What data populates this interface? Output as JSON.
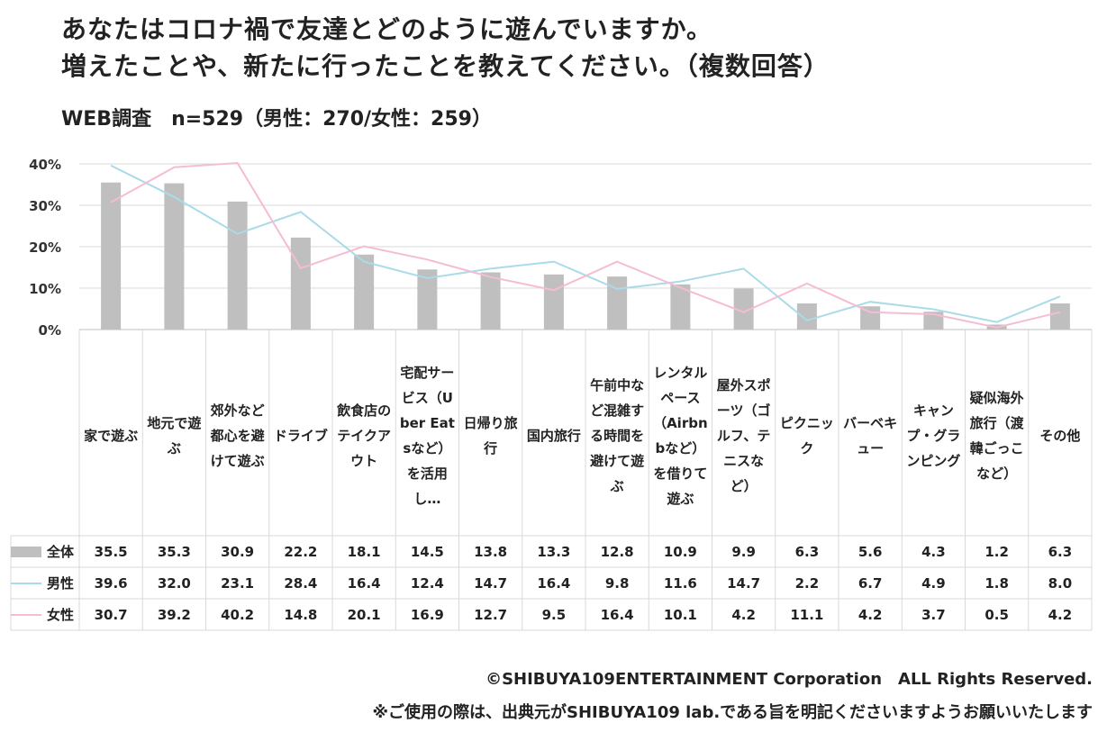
{
  "title_lines": [
    "あなたはコロナ禍で友達とどのように遊んでいますか。",
    "増えたことや、新たに行ったことを教えてください。（複数回答）"
  ],
  "subtitle": "WEB調査　n=529（男性：270/女性：259）",
  "footer": {
    "copyright": "©SHIBUYA109ENTERTAINMENT Corporation　ALL Rights Reserved.",
    "note": "※ご使用の際は、出典元がSHIBUYA109 lab.である旨を明記くださいますようお願いいたします"
  },
  "chart_data": {
    "type": "bar",
    "ylim": [
      0,
      40
    ],
    "yticks": [
      "0%",
      "10%",
      "20%",
      "30%",
      "40%"
    ],
    "categories": [
      "家で遊ぶ",
      "地元で遊ぶ",
      "郊外など都心を避けて遊ぶ",
      "ドライブ",
      "飲食店のテイクアウト",
      "宅配サービス（Uber Eatsなど）を活用し…",
      "日帰り旅行",
      "国内旅行",
      "午前中など混雑する時間を避けて遊ぶ",
      "レンタルペース（Airbnbなど）を借りて遊ぶ",
      "屋外スポーツ（ゴルフ、テニスなど）",
      "ピクニック",
      "バーベキュー",
      "キャンプ・グランピング",
      "疑似海外旅行（渡韓ごっこなど）",
      "その他"
    ],
    "series": [
      {
        "name": "全体",
        "kind": "bar",
        "color": "#bfbfbf",
        "values": [
          35.5,
          35.3,
          30.9,
          22.2,
          18.1,
          14.5,
          13.8,
          13.3,
          12.8,
          10.9,
          9.9,
          6.3,
          5.6,
          4.3,
          1.2,
          6.3
        ],
        "labels": [
          "35.5",
          "35.3",
          "30.9",
          "22.2",
          "18.1",
          "14.5",
          "13.8",
          "13.3",
          "12.8",
          "10.9",
          "9.9",
          "6.3",
          "5.6",
          "4.3",
          "1.2",
          "6.3"
        ]
      },
      {
        "name": "男性",
        "kind": "line",
        "color": "#a9dbe8",
        "values": [
          39.6,
          32.0,
          23.1,
          28.4,
          16.4,
          12.4,
          14.7,
          16.4,
          9.8,
          11.6,
          14.7,
          2.2,
          6.7,
          4.9,
          1.8,
          8.0
        ],
        "labels": [
          "39.6",
          "32.0",
          "23.1",
          "28.4",
          "16.4",
          "12.4",
          "14.7",
          "16.4",
          "9.8",
          "11.6",
          "14.7",
          "2.2",
          "6.7",
          "4.9",
          "1.8",
          "8.0"
        ]
      },
      {
        "name": "女性",
        "kind": "line",
        "color": "#f5bcd3",
        "values": [
          30.7,
          39.2,
          40.2,
          14.8,
          20.1,
          16.9,
          12.7,
          9.5,
          16.4,
          10.1,
          4.2,
          11.1,
          4.2,
          3.7,
          0.5,
          4.2
        ],
        "labels": [
          "30.7",
          "39.2",
          "40.2",
          "14.8",
          "20.1",
          "16.9",
          "12.7",
          "9.5",
          "16.4",
          "10.1",
          "4.2",
          "11.1",
          "4.2",
          "3.7",
          "0.5",
          "4.2"
        ]
      }
    ]
  }
}
